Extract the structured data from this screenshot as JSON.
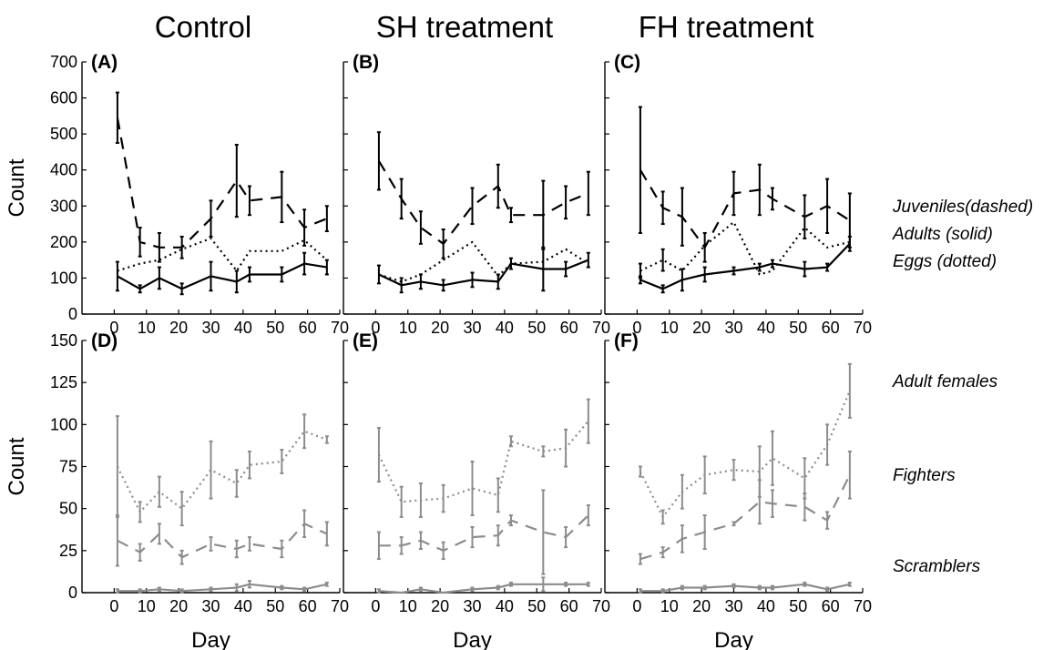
{
  "column_titles": [
    "Control",
    "SH treatment",
    "FH treatment"
  ],
  "annotations": {
    "juveniles": "Juveniles(dashed)",
    "adults": "Adults (solid)",
    "eggs": "Eggs (dotted)",
    "adult_females": "Adult females",
    "fighters": "Fighters",
    "scramblers": "Scramblers"
  },
  "colors": {
    "top_series": "#000000",
    "bottom_series": "#8c8c8c"
  },
  "chart_data": [
    {
      "type": "line",
      "panel": "(A)",
      "xlabel": "",
      "ylabel": "Count",
      "xlim": [
        -10,
        70
      ],
      "ylim": [
        0,
        700
      ],
      "xticks": [
        0,
        10,
        20,
        30,
        40,
        50,
        60,
        70
      ],
      "yticks": [
        0,
        100,
        200,
        300,
        400,
        500,
        600,
        700
      ],
      "x": [
        1,
        8,
        14,
        21,
        30,
        38,
        42,
        52,
        59,
        66
      ],
      "series": [
        {
          "style": "dashed",
          "values": [
            545,
            200,
            185,
            185,
            265,
            370,
            315,
            325,
            240,
            265
          ],
          "errors": [
            70,
            40,
            40,
            30,
            50,
            100,
            40,
            70,
            50,
            35
          ]
        },
        {
          "style": "solid",
          "values": [
            105,
            70,
            100,
            70,
            105,
            90,
            110,
            110,
            140,
            130
          ],
          "errors": [
            40,
            10,
            30,
            15,
            40,
            30,
            20,
            20,
            30,
            20
          ]
        },
        {
          "style": "dotted",
          "values": [
            120,
            140,
            150,
            180,
            210,
            120,
            175,
            175,
            205,
            150
          ],
          "errors": [
            0,
            0,
            0,
            0,
            0,
            0,
            0,
            0,
            0,
            0
          ]
        }
      ]
    },
    {
      "type": "line",
      "panel": "(B)",
      "xlabel": "",
      "ylabel": "",
      "xlim": [
        -10,
        70
      ],
      "ylim": [
        0,
        700
      ],
      "xticks": [
        0,
        10,
        20,
        30,
        40,
        50,
        60,
        70
      ],
      "yticks": [
        0,
        100,
        200,
        300,
        400,
        500,
        600,
        700
      ],
      "x": [
        1,
        8,
        14,
        21,
        30,
        38,
        42,
        52,
        59,
        66
      ],
      "series": [
        {
          "style": "dashed",
          "values": [
            425,
            320,
            240,
            195,
            300,
            355,
            275,
            275,
            310,
            335
          ],
          "errors": [
            80,
            55,
            45,
            40,
            50,
            60,
            20,
            95,
            45,
            60
          ]
        },
        {
          "style": "solid",
          "values": [
            110,
            80,
            90,
            80,
            95,
            90,
            140,
            125,
            125,
            150
          ],
          "errors": [
            25,
            20,
            20,
            15,
            20,
            20,
            15,
            60,
            20,
            20
          ]
        },
        {
          "style": "dotted",
          "values": [
            110,
            90,
            110,
            150,
            200,
            105,
            140,
            145,
            180,
            140
          ],
          "errors": [
            0,
            0,
            0,
            0,
            0,
            0,
            0,
            0,
            0,
            0
          ]
        }
      ]
    },
    {
      "type": "line",
      "panel": "(C)",
      "xlabel": "",
      "ylabel": "",
      "xlim": [
        -10,
        70
      ],
      "ylim": [
        0,
        700
      ],
      "xticks": [
        0,
        10,
        20,
        30,
        40,
        50,
        60,
        70
      ],
      "yticks": [
        0,
        100,
        200,
        300,
        400,
        500,
        600,
        700
      ],
      "x": [
        1,
        8,
        14,
        21,
        30,
        38,
        42,
        52,
        59,
        66
      ],
      "series": [
        {
          "style": "dashed",
          "values": [
            400,
            295,
            270,
            185,
            335,
            345,
            320,
            270,
            300,
            260
          ],
          "errors": [
            175,
            45,
            80,
            40,
            60,
            70,
            30,
            60,
            75,
            75
          ]
        },
        {
          "style": "solid",
          "values": [
            95,
            70,
            95,
            110,
            120,
            130,
            140,
            125,
            130,
            195
          ],
          "errors": [
            10,
            10,
            30,
            20,
            10,
            10,
            10,
            20,
            10,
            20
          ]
        },
        {
          "style": "dotted",
          "values": [
            120,
            150,
            120,
            190,
            255,
            110,
            120,
            240,
            185,
            200
          ],
          "errors": [
            20,
            30,
            0,
            0,
            0,
            0,
            0,
            0,
            0,
            0
          ]
        }
      ]
    },
    {
      "type": "line",
      "panel": "(D)",
      "xlabel": "Day",
      "ylabel": "Count",
      "xlim": [
        -10,
        70
      ],
      "ylim": [
        0,
        150
      ],
      "xticks": [
        0,
        10,
        20,
        30,
        40,
        50,
        60,
        70
      ],
      "yticks": [
        0,
        25,
        50,
        75,
        100,
        125,
        150
      ],
      "x": [
        1,
        8,
        14,
        21,
        30,
        38,
        42,
        52,
        59,
        66
      ],
      "series": [
        {
          "style": "dotted",
          "values": [
            75,
            48,
            60,
            50,
            73,
            65,
            76,
            78,
            96,
            91
          ],
          "errors": [
            30,
            6,
            9,
            10,
            17,
            8,
            8,
            7,
            10,
            2
          ]
        },
        {
          "style": "dashed",
          "values": [
            31,
            24,
            35,
            21,
            29,
            26,
            29,
            26,
            41,
            35
          ],
          "errors": [
            15,
            5,
            6,
            4,
            4,
            5,
            4,
            5,
            8,
            7
          ]
        },
        {
          "style": "solid",
          "values": [
            1,
            1,
            2,
            1,
            2,
            3,
            5,
            3,
            2,
            5
          ],
          "errors": [
            1,
            1,
            1,
            1,
            1,
            2,
            2,
            1,
            1,
            1
          ]
        }
      ]
    },
    {
      "type": "line",
      "panel": "(E)",
      "xlabel": "Day",
      "ylabel": "",
      "xlim": [
        -10,
        70
      ],
      "ylim": [
        0,
        150
      ],
      "xticks": [
        0,
        10,
        20,
        30,
        40,
        50,
        60,
        70
      ],
      "yticks": [
        0,
        25,
        50,
        75,
        100,
        125,
        150
      ],
      "x": [
        1,
        8,
        14,
        21,
        30,
        38,
        42,
        52,
        59,
        66
      ],
      "series": [
        {
          "style": "dotted",
          "values": [
            82,
            54,
            55,
            56,
            62,
            58,
            90,
            84,
            86,
            102
          ],
          "errors": [
            16,
            9,
            10,
            8,
            16,
            10,
            3,
            3,
            11,
            13
          ]
        },
        {
          "style": "dashed",
          "values": [
            28,
            28,
            31,
            25,
            33,
            34,
            43,
            36,
            33,
            46
          ],
          "errors": [
            8,
            5,
            5,
            5,
            6,
            6,
            3,
            25,
            6,
            6
          ]
        },
        {
          "style": "solid",
          "values": [
            1,
            0,
            2,
            0,
            2,
            3,
            5,
            5,
            5,
            5
          ],
          "errors": [
            1,
            0,
            1,
            0,
            1,
            1,
            1,
            4,
            1,
            1
          ]
        }
      ]
    },
    {
      "type": "line",
      "panel": "(F)",
      "xlabel": "Day",
      "ylabel": "",
      "xlim": [
        -10,
        70
      ],
      "ylim": [
        0,
        150
      ],
      "xticks": [
        0,
        10,
        20,
        30,
        40,
        50,
        60,
        70
      ],
      "yticks": [
        0,
        25,
        50,
        75,
        100,
        125,
        150
      ],
      "x": [
        1,
        8,
        14,
        21,
        30,
        38,
        42,
        52,
        59,
        66
      ],
      "series": [
        {
          "style": "dotted",
          "values": [
            72,
            45,
            60,
            70,
            73,
            72,
            80,
            68,
            88,
            120
          ],
          "errors": [
            3,
            4,
            10,
            11,
            6,
            15,
            16,
            12,
            12,
            16
          ]
        },
        {
          "style": "dashed",
          "values": [
            20,
            24,
            32,
            36,
            41,
            54,
            53,
            51,
            43,
            70
          ],
          "errors": [
            3,
            3,
            8,
            10,
            1,
            13,
            8,
            8,
            5,
            14
          ]
        },
        {
          "style": "solid",
          "values": [
            1,
            1,
            3,
            3,
            4,
            3,
            3,
            5,
            2,
            5
          ],
          "errors": [
            1,
            1,
            1,
            1,
            1,
            1,
            1,
            1,
            1,
            1
          ]
        }
      ]
    }
  ]
}
